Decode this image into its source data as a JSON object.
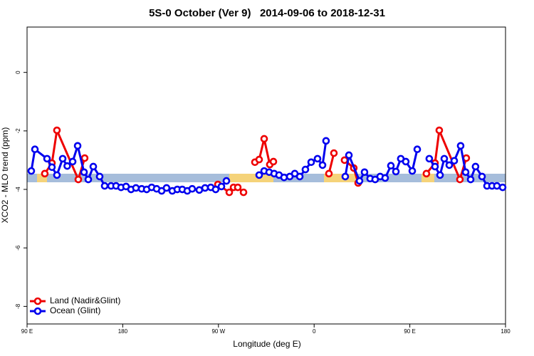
{
  "chart_data": {
    "type": "line",
    "title": "5S-0 October (Ver 9)   2014-09-06 to 2018-12-31",
    "xlabel": "Longitude (deg E)",
    "ylabel": "XCO2 - MLO trend (ppm)",
    "xlim": [
      90,
      540
    ],
    "ylim": [
      -8.6,
      1.55
    ],
    "xticks": [
      {
        "value": 90,
        "label": "90 E"
      },
      180,
      {
        "value": 270,
        "label": "90 W"
      },
      {
        "value": 360,
        "label": "0"
      },
      {
        "value": 450,
        "label": "90 E"
      },
      {
        "value": 540,
        "label": "180"
      }
    ],
    "yticks": [
      0,
      -2,
      -4,
      -6,
      -8
    ],
    "legend": "bottom-left",
    "series": [
      {
        "name": "Land (Nadir&Glint)",
        "color": "#ee0000",
        "x": [
          106.7,
          113.4,
          118.1,
          138.2,
          144.2,
          null,
          269.5,
          280.2,
          284.2,
          288.2,
          293.6,
          null,
          304.3,
          308.3,
          313.0,
          318.3,
          321.7,
          null,
          373.9,
          378.6,
          null,
          388.6,
          397.3,
          401.4,
          null,
          465.6,
          473.7,
          477.7,
          497.1,
          503.1
        ],
        "values": [
          -3.46,
          -3.1,
          -1.98,
          -3.66,
          -2.93,
          null,
          -3.83,
          -4.1,
          -3.93,
          -3.93,
          -4.1,
          null,
          -3.07,
          -2.98,
          -2.27,
          -3.15,
          -3.05,
          null,
          -3.46,
          -2.76,
          null,
          -3.0,
          -3.27,
          -3.78,
          null,
          -3.46,
          -3.1,
          -1.98,
          -3.66,
          -2.93
        ]
      },
      {
        "name": "Ocean (Glint)",
        "color": "#0000ee",
        "x": [
          94.0,
          97.4,
          108.8,
          113.4,
          118.1,
          123.5,
          127.8,
          132.9,
          137.6,
          143.6,
          147.6,
          152.3,
          158.3,
          163.0,
          169.0,
          173.7,
          178.4,
          183.1,
          187.8,
          192.4,
          197.8,
          202.5,
          207.2,
          211.9,
          216.6,
          221.2,
          226.6,
          231.3,
          236.0,
          240.7,
          245.3,
          252.0,
          257.4,
          262.8,
          267.4,
          272.8,
          277.5,
          null,
          308.3,
          313.0,
          317.7,
          322.4,
          327.0,
          331.7,
          337.1,
          341.8,
          346.5,
          351.8,
          357.2,
          363.2,
          367.9,
          371.2,
          null,
          389.3,
          392.7,
          402.7,
          407.4,
          412.7,
          417.4,
          422.1,
          426.8,
          432.2,
          436.9,
          441.5,
          446.2,
          452.3,
          457.0,
          null,
          468.3,
          473.7,
          478.4,
          482.4,
          487.1,
          491.8,
          497.8,
          502.5,
          507.2,
          511.8,
          517.9,
          522.6,
          527.3,
          531.9,
          537.3
        ],
        "values": [
          -3.37,
          -2.63,
          -2.95,
          -3.24,
          -3.51,
          -2.95,
          -3.2,
          -3.05,
          -2.51,
          -3.41,
          -3.66,
          -3.22,
          -3.56,
          -3.88,
          -3.88,
          -3.88,
          -3.93,
          -3.9,
          -4.0,
          -3.95,
          -3.98,
          -4.0,
          -3.93,
          -3.98,
          -4.05,
          -3.95,
          -4.05,
          -4.0,
          -4.0,
          -4.05,
          -3.98,
          -4.02,
          -3.95,
          -3.93,
          -4.0,
          -3.9,
          -3.71,
          null,
          -3.51,
          -3.37,
          -3.41,
          -3.46,
          -3.51,
          -3.59,
          -3.56,
          -3.46,
          -3.56,
          -3.32,
          -3.07,
          -2.95,
          -3.17,
          -2.34,
          null,
          -3.56,
          -2.83,
          -3.71,
          -3.41,
          -3.63,
          -3.66,
          -3.56,
          -3.61,
          -3.19,
          -3.39,
          -2.95,
          -3.05,
          -3.37,
          -2.63,
          null,
          -2.95,
          -3.22,
          -3.51,
          -2.95,
          -3.17,
          -3.02,
          -2.51,
          -3.41,
          -3.66,
          -3.22,
          -3.56,
          -3.88,
          -3.88,
          -3.88,
          -3.93
        ]
      }
    ]
  }
}
